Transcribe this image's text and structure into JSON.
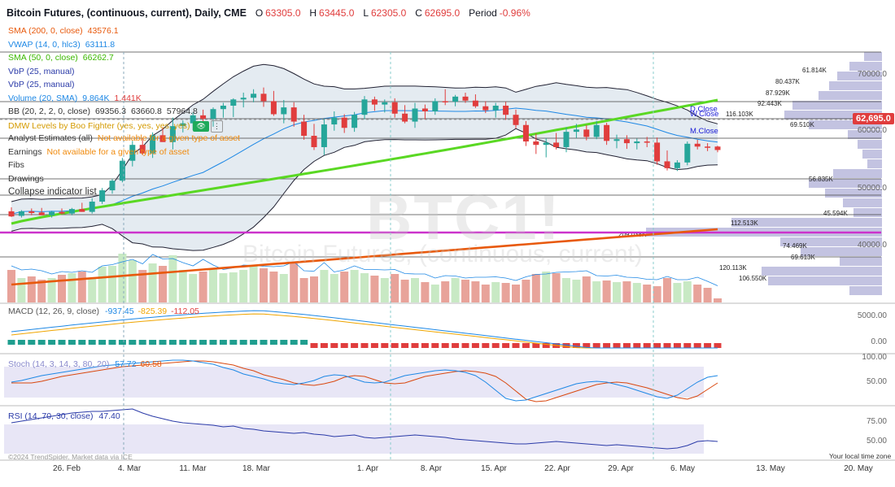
{
  "header": {
    "title": "Bitcoin Futures, (continuous, current), Daily, CME",
    "open_label": "O",
    "open": "63305.0",
    "high_label": "H",
    "high": "63445.0",
    "low_label": "L",
    "low": "62305.0",
    "close_label": "C",
    "close": "62695.0",
    "period_label": "Period",
    "period": "-0.96%"
  },
  "indicators": [
    {
      "label": "SMA (200, 0, close)",
      "value": "43576.1",
      "color": "#e8590c"
    },
    {
      "label": "VWAP (14, 0, hlc3)",
      "value": "63111.8",
      "color": "#1e88e5"
    },
    {
      "label": "SMA (50, 0, close)",
      "value": "66262.7",
      "color": "#5ad823"
    },
    {
      "label": "VbP (25, manual)",
      "value": "",
      "color": "#2a3aa8"
    },
    {
      "label": "VbP (25, manual)",
      "value": "",
      "color": "#2a3aa8"
    },
    {
      "label": "Volume (20, SMA)",
      "value": "9.864K",
      "value2": "1.441K",
      "color": "#1e88e5"
    },
    {
      "label": "BB (20, 2, 2, 0, close)",
      "value": "69356.3",
      "value2": "63660.8",
      "value3": "57964.8",
      "color": "#333333"
    }
  ],
  "dmw": {
    "label": "DMW Levels by Boo Fighter (yes, yes, yes, yes)",
    "eye": "👁",
    "menu": "⋮"
  },
  "analyst": {
    "label": "Analyst Estimates (all)",
    "warn": "Not available for a given type of asset"
  },
  "earnings": {
    "label": "Earnings",
    "warn": "Not available for a given type of asset"
  },
  "fibs": "Fibs",
  "drawings": "Drawings",
  "collapse": "Collapse indicator list",
  "watermark": {
    "symbol": "BTC1!",
    "name": "Bitcoin Futures, (continuous, current)"
  },
  "price_tag": "62,695.0",
  "line_labels": {
    "d_close": "D.Close",
    "w_close": "W.Close",
    "m_close": "M.Close"
  },
  "y_axis_main": [
    "70000.0",
    "60000.0",
    "50000.0",
    "40000.0"
  ],
  "macd": {
    "label": "MACD (12, 26, 9, close)",
    "v1": "-937.45",
    "v2": "-825.39",
    "v3": "-112.05",
    "ticks": [
      "5000.00",
      "0.00"
    ]
  },
  "stoch": {
    "label": "Stoch (14, 3, 14, 3, 80, 20)",
    "v1": "57.72",
    "v2": "60.58",
    "ticks": [
      "100.00",
      "50.00"
    ]
  },
  "rsi": {
    "label": "RSI (14, 70, 30, close)",
    "v1": "47.40",
    "ticks": [
      "75.00",
      "50.00"
    ]
  },
  "x_axis": [
    "26. Feb",
    "4. Mar",
    "11. Mar",
    "18. Mar",
    "1. Apr",
    "8. Apr",
    "15. Apr",
    "22. Apr",
    "29. Apr",
    "6. May",
    "13. May",
    "20. May"
  ],
  "timezone": "Your local time zone",
  "copyright": "©2024 TrendSpider. Market data via ICE",
  "vbp_labels": [
    "61.814K",
    "80.437K",
    "87.929K",
    "92.443K",
    "116.103K",
    "69.510K",
    "56.835K",
    "45.594K",
    "112.513K",
    "209.038K",
    "74.469K",
    "69.613K",
    "120.113K",
    "106.550K"
  ],
  "colors": {
    "up": "#26a69a",
    "down": "#e03d3d",
    "sma50": "#5ad823",
    "sma200": "#e8590c",
    "bb_fill": "#dbe4ec",
    "vbp": "#b8b8dc",
    "magenta": "#cc33cc"
  },
  "chart_data": {
    "type": "candlestick",
    "interval": "Daily",
    "symbol": "BTC1!",
    "y_range": [
      22000,
      78000
    ],
    "candles": [
      {
        "o": 51900,
        "h": 52600,
        "l": 50900,
        "c": 51000
      },
      {
        "o": 51100,
        "h": 52100,
        "l": 50800,
        "c": 51900
      },
      {
        "o": 51900,
        "h": 52400,
        "l": 51200,
        "c": 51600
      },
      {
        "o": 51700,
        "h": 52500,
        "l": 51300,
        "c": 51200
      },
      {
        "o": 51200,
        "h": 52000,
        "l": 50800,
        "c": 51800
      },
      {
        "o": 51800,
        "h": 52400,
        "l": 51300,
        "c": 51500
      },
      {
        "o": 51500,
        "h": 52500,
        "l": 51200,
        "c": 52300
      },
      {
        "o": 52300,
        "h": 53400,
        "l": 51800,
        "c": 51800
      },
      {
        "o": 51800,
        "h": 54200,
        "l": 51500,
        "c": 53600
      },
      {
        "o": 53600,
        "h": 56000,
        "l": 53200,
        "c": 55600
      },
      {
        "o": 55600,
        "h": 57600,
        "l": 55000,
        "c": 57300
      },
      {
        "o": 57300,
        "h": 61300,
        "l": 57000,
        "c": 60800
      },
      {
        "o": 60800,
        "h": 64300,
        "l": 59800,
        "c": 63600
      },
      {
        "o": 63600,
        "h": 64700,
        "l": 61800,
        "c": 62100
      },
      {
        "o": 62100,
        "h": 65800,
        "l": 61300,
        "c": 65300
      },
      {
        "o": 65300,
        "h": 66700,
        "l": 64200,
        "c": 64100
      },
      {
        "o": 64100,
        "h": 68400,
        "l": 62800,
        "c": 66900
      },
      {
        "o": 66900,
        "h": 67900,
        "l": 65800,
        "c": 67400
      },
      {
        "o": 67400,
        "h": 69300,
        "l": 66200,
        "c": 68800
      },
      {
        "o": 68800,
        "h": 69800,
        "l": 67600,
        "c": 68200
      },
      {
        "o": 68200,
        "h": 70200,
        "l": 66800,
        "c": 69900
      },
      {
        "o": 69900,
        "h": 71000,
        "l": 68400,
        "c": 70500
      },
      {
        "o": 70500,
        "h": 71800,
        "l": 68500,
        "c": 71600
      },
      {
        "o": 71600,
        "h": 72800,
        "l": 70200,
        "c": 71900
      },
      {
        "o": 71900,
        "h": 73400,
        "l": 71100,
        "c": 72600
      },
      {
        "o": 72600,
        "h": 73700,
        "l": 70300,
        "c": 71300
      },
      {
        "o": 71300,
        "h": 73100,
        "l": 68700,
        "c": 69000
      },
      {
        "o": 69000,
        "h": 71500,
        "l": 67400,
        "c": 70200
      },
      {
        "o": 70200,
        "h": 71100,
        "l": 66800,
        "c": 67700
      },
      {
        "o": 67700,
        "h": 68900,
        "l": 64500,
        "c": 65200
      },
      {
        "o": 65200,
        "h": 67300,
        "l": 62700,
        "c": 63200
      },
      {
        "o": 63200,
        "h": 68200,
        "l": 61800,
        "c": 67200
      },
      {
        "o": 67200,
        "h": 69500,
        "l": 66100,
        "c": 68400
      },
      {
        "o": 68400,
        "h": 69000,
        "l": 65700,
        "c": 66600
      },
      {
        "o": 66600,
        "h": 69400,
        "l": 65900,
        "c": 68900
      },
      {
        "o": 68900,
        "h": 72200,
        "l": 68100,
        "c": 71600
      },
      {
        "o": 71600,
        "h": 72100,
        "l": 69600,
        "c": 70700
      },
      {
        "o": 70700,
        "h": 71600,
        "l": 69300,
        "c": 71100
      },
      {
        "o": 71100,
        "h": 71800,
        "l": 68400,
        "c": 69100
      },
      {
        "o": 69100,
        "h": 70600,
        "l": 67400,
        "c": 67700
      },
      {
        "o": 67700,
        "h": 71000,
        "l": 66600,
        "c": 70000
      },
      {
        "o": 70000,
        "h": 70700,
        "l": 68100,
        "c": 69500
      },
      {
        "o": 69500,
        "h": 71800,
        "l": 68900,
        "c": 71300
      },
      {
        "o": 71300,
        "h": 73400,
        "l": 70600,
        "c": 71200
      },
      {
        "o": 71200,
        "h": 72400,
        "l": 70400,
        "c": 72100
      },
      {
        "o": 72100,
        "h": 72800,
        "l": 71000,
        "c": 71400
      },
      {
        "o": 71400,
        "h": 72500,
        "l": 70100,
        "c": 70400
      },
      {
        "o": 70400,
        "h": 71300,
        "l": 69200,
        "c": 69700
      },
      {
        "o": 69700,
        "h": 71000,
        "l": 68400,
        "c": 70500
      },
      {
        "o": 70500,
        "h": 71200,
        "l": 68000,
        "c": 68900
      },
      {
        "o": 68900,
        "h": 69800,
        "l": 66500,
        "c": 67100
      },
      {
        "o": 67100,
        "h": 67800,
        "l": 63400,
        "c": 64200
      },
      {
        "o": 64200,
        "h": 65600,
        "l": 62000,
        "c": 63600
      },
      {
        "o": 63600,
        "h": 64800,
        "l": 61400,
        "c": 64000
      },
      {
        "o": 64000,
        "h": 65700,
        "l": 62800,
        "c": 63200
      },
      {
        "o": 63200,
        "h": 66700,
        "l": 62300,
        "c": 65900
      },
      {
        "o": 65900,
        "h": 67300,
        "l": 64800,
        "c": 66300
      },
      {
        "o": 66300,
        "h": 67100,
        "l": 64400,
        "c": 65000
      },
      {
        "o": 65000,
        "h": 67800,
        "l": 64600,
        "c": 67100
      },
      {
        "o": 67100,
        "h": 67500,
        "l": 63600,
        "c": 64300
      },
      {
        "o": 64300,
        "h": 65400,
        "l": 63000,
        "c": 64600
      },
      {
        "o": 64600,
        "h": 65300,
        "l": 62900,
        "c": 63900
      },
      {
        "o": 63900,
        "h": 64700,
        "l": 62800,
        "c": 64200
      },
      {
        "o": 64200,
        "h": 65000,
        "l": 63200,
        "c": 64000
      },
      {
        "o": 64000,
        "h": 64900,
        "l": 60100,
        "c": 60700
      },
      {
        "o": 60700,
        "h": 62600,
        "l": 59100,
        "c": 59500
      },
      {
        "o": 59500,
        "h": 60900,
        "l": 59000,
        "c": 60500
      },
      {
        "o": 60500,
        "h": 64200,
        "l": 60000,
        "c": 63800
      },
      {
        "o": 63800,
        "h": 64500,
        "l": 62800,
        "c": 63300
      },
      {
        "o": 63300,
        "h": 63900,
        "l": 62500,
        "c": 63100
      },
      {
        "o": 63305,
        "h": 63445,
        "l": 62305,
        "c": 62695
      }
    ],
    "sma50_range": [
      46500,
      66262.7
    ],
    "sma200_range": [
      29500,
      43576.1
    ],
    "horizontal_levels": [
      69356,
      67800,
      65700,
      61100,
      53600,
      51600,
      48500,
      46000,
      43000,
      37500
    ],
    "x_tick_labels": [
      "26. Feb",
      "4. Mar",
      "11. Mar",
      "18. Mar",
      "1. Apr",
      "8. Apr",
      "15. Apr",
      "22. Apr",
      "29. Apr",
      "6. May",
      "13. May",
      "20. May"
    ]
  }
}
